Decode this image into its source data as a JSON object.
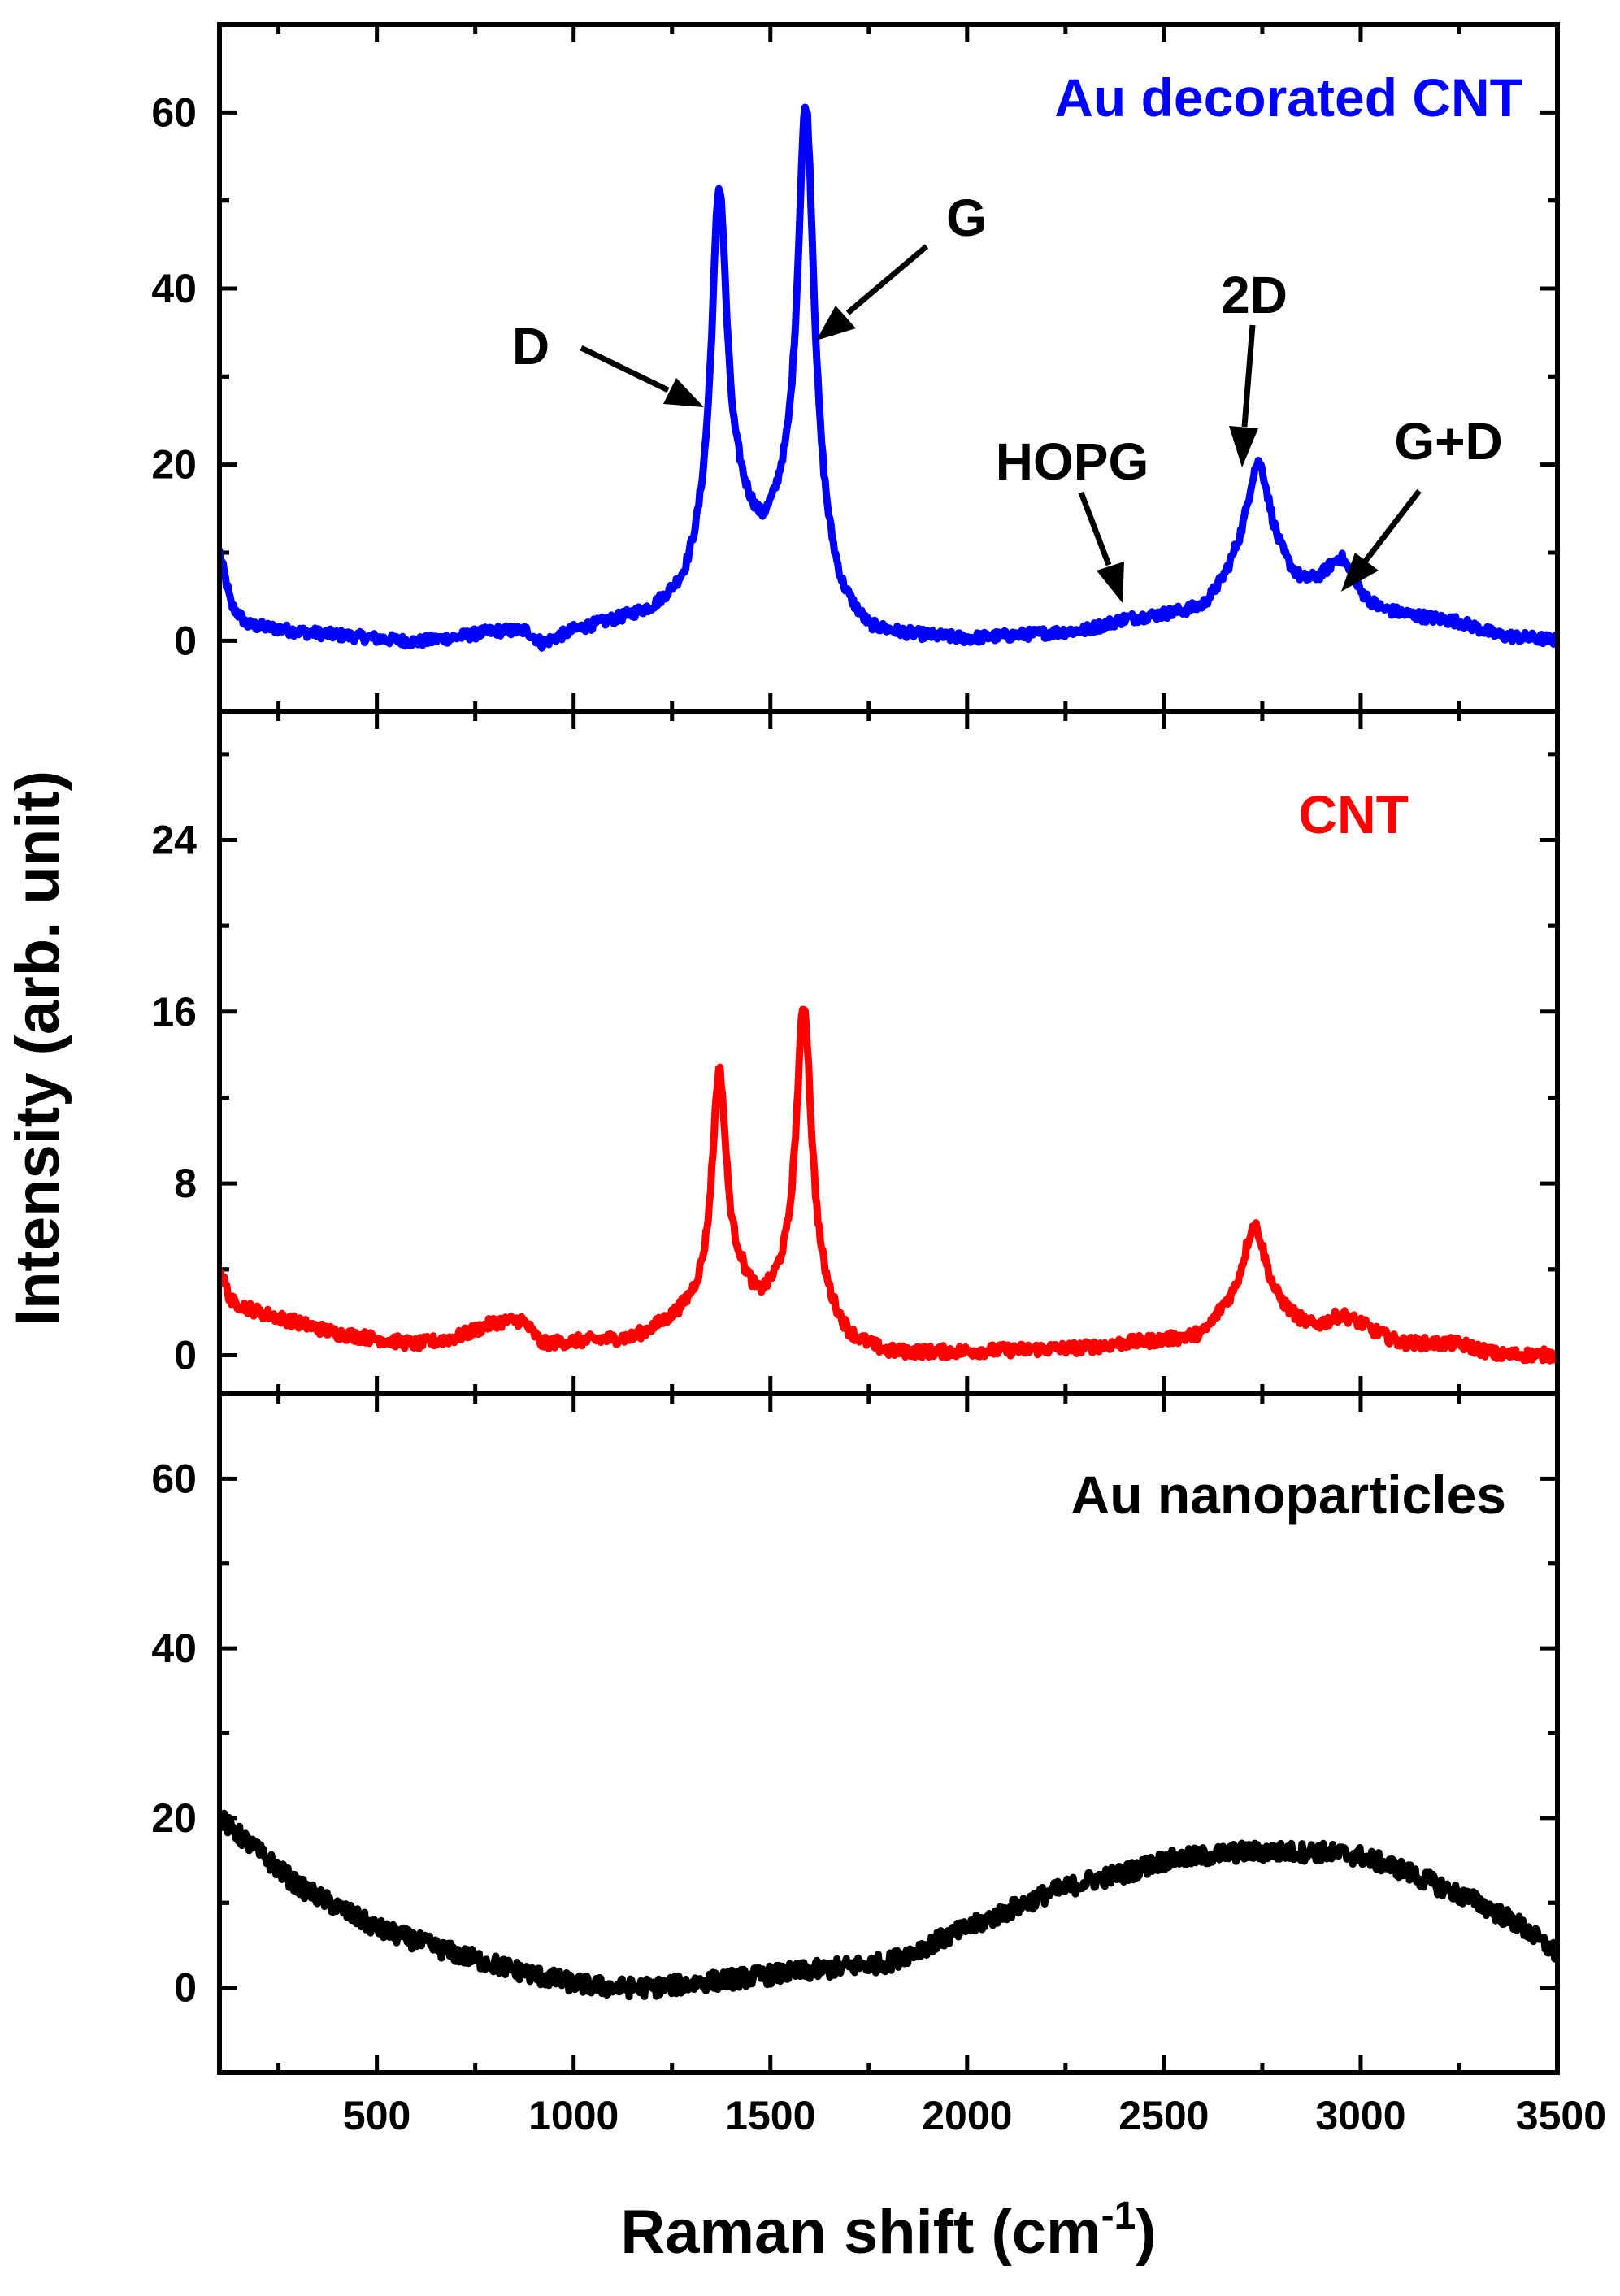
{
  "chart_data": {
    "type": "line",
    "xlabel": "Raman shift (cm",
    "xlabel_sup": "-1",
    "xlabel_end": ")",
    "ylabel": "Intensity (arb. unit)",
    "xlim": [
      100,
      3500
    ],
    "x_ticks": [
      500,
      1000,
      1500,
      2000,
      2500,
      3000,
      3500
    ],
    "x_tick_labels": [
      "500",
      "1000",
      "1500",
      "2000",
      "2500",
      "3000",
      "3500"
    ],
    "panels": [
      {
        "name": "Au decorated CNT",
        "label": "Au decorated CNT",
        "color": "#0000ff",
        "ylim": [
          -8,
          70
        ],
        "y_ticks": [
          0,
          20,
          40,
          60
        ],
        "y_tick_labels": [
          "0",
          "20",
          "40",
          "60"
        ],
        "baseline": [
          [
            100,
            10
          ],
          [
            130,
            4
          ],
          [
            170,
            1.8
          ],
          [
            300,
            1
          ],
          [
            500,
            0.2
          ],
          [
            600,
            -0.2
          ],
          [
            700,
            0.3
          ],
          [
            800,
            1
          ],
          [
            880,
            1
          ],
          [
            920,
            -0.5
          ],
          [
            1000,
            1
          ],
          [
            1100,
            2
          ],
          [
            1200,
            3
          ],
          [
            1280,
            5
          ],
          [
            1330,
            9
          ],
          [
            1420,
            13
          ],
          [
            1480,
            10
          ],
          [
            1530,
            12
          ],
          [
            1600,
            10
          ],
          [
            1680,
            3
          ],
          [
            1750,
            0.5
          ],
          [
            2000,
            0
          ],
          [
            2300,
            1
          ],
          [
            2400,
            2.2
          ],
          [
            2500,
            2.6
          ],
          [
            2600,
            3
          ],
          [
            2680,
            6
          ],
          [
            2800,
            6
          ],
          [
            2850,
            5
          ],
          [
            2900,
            5.5
          ],
          [
            2950,
            6.5
          ],
          [
            3000,
            4
          ],
          [
            3050,
            3
          ],
          [
            3250,
            2
          ],
          [
            3350,
            0.5
          ],
          [
            3500,
            0
          ]
        ],
        "peaks": [
          {
            "center": 1370,
            "height": 40,
            "width": 24
          },
          {
            "center": 1590,
            "height": 50,
            "width": 26
          },
          {
            "center": 2740,
            "height": 14,
            "width": 40
          },
          {
            "center": 2950,
            "height": 2.5,
            "width": 50
          }
        ],
        "noise_amplitude": 0.6,
        "annotations": [
          {
            "text": "D",
            "x": 1370,
            "y": 45
          },
          {
            "text": "G",
            "x": 1590,
            "y": 55
          },
          {
            "text": "HOPG",
            "x": 2450,
            "y": 3
          },
          {
            "text": "2D",
            "x": 2740,
            "y": 19
          },
          {
            "text": "G+D",
            "x": 2950,
            "y": 7
          }
        ]
      },
      {
        "name": "CNT",
        "label": "CNT",
        "color": "#ff0000",
        "ylim": [
          -1.8,
          30
        ],
        "y_ticks": [
          0,
          8,
          16,
          24
        ],
        "y_tick_labels": [
          "0",
          "8",
          "16",
          "24"
        ],
        "baseline": [
          [
            100,
            4
          ],
          [
            130,
            2.5
          ],
          [
            200,
            2
          ],
          [
            400,
            1
          ],
          [
            600,
            0.5
          ],
          [
            700,
            0.8
          ],
          [
            800,
            1.5
          ],
          [
            870,
            1.6
          ],
          [
            920,
            0.5
          ],
          [
            1000,
            0.6
          ],
          [
            1150,
            0.7
          ],
          [
            1250,
            1.5
          ],
          [
            1300,
            2
          ],
          [
            1420,
            3
          ],
          [
            1470,
            2
          ],
          [
            1530,
            2.5
          ],
          [
            1620,
            2
          ],
          [
            1700,
            0.5
          ],
          [
            1800,
            0
          ],
          [
            2300,
            0.3
          ],
          [
            2400,
            0.5
          ],
          [
            2500,
            0.6
          ],
          [
            2600,
            0.7
          ],
          [
            2650,
            1.5
          ],
          [
            2800,
            1.5
          ],
          [
            2880,
            1
          ],
          [
            3000,
            1.2
          ],
          [
            3100,
            0.5
          ],
          [
            3250,
            0.5
          ],
          [
            3350,
            0
          ],
          [
            3500,
            0
          ]
        ],
        "peaks": [
          {
            "center": 1370,
            "height": 10.5,
            "width": 22
          },
          {
            "center": 1585,
            "height": 14,
            "width": 24
          },
          {
            "center": 2730,
            "height": 4.5,
            "width": 38
          },
          {
            "center": 2950,
            "height": 0.6,
            "width": 40
          }
        ],
        "noise_amplitude": 0.28
      },
      {
        "name": "Au nanoparticles",
        "label": "Au nanoparticles",
        "color": "#000000",
        "ylim": [
          -10,
          70
        ],
        "y_ticks": [
          0,
          20,
          40,
          60
        ],
        "y_tick_labels": [
          "0",
          "20",
          "40",
          "60"
        ],
        "baseline": [
          [
            100,
            20
          ],
          [
            300,
            12
          ],
          [
            500,
            7
          ],
          [
            700,
            4
          ],
          [
            900,
            1.5
          ],
          [
            1000,
            0.5
          ],
          [
            1100,
            0
          ],
          [
            1200,
            0
          ],
          [
            1300,
            0.5
          ],
          [
            1400,
            1
          ],
          [
            1500,
            1.5
          ],
          [
            1600,
            2
          ],
          [
            1700,
            2.5
          ],
          [
            1800,
            3
          ],
          [
            1900,
            5
          ],
          [
            2000,
            7
          ],
          [
            2100,
            9
          ],
          [
            2200,
            11
          ],
          [
            2300,
            12.5
          ],
          [
            2400,
            13.5
          ],
          [
            2500,
            15
          ],
          [
            2600,
            15.5
          ],
          [
            2700,
            16
          ],
          [
            2800,
            16
          ],
          [
            2900,
            16
          ],
          [
            3000,
            15.5
          ],
          [
            3100,
            14
          ],
          [
            3200,
            12
          ],
          [
            3300,
            10
          ],
          [
            3400,
            7.5
          ],
          [
            3500,
            4
          ]
        ],
        "peaks": [],
        "noise_amplitude": 1.1
      }
    ]
  }
}
